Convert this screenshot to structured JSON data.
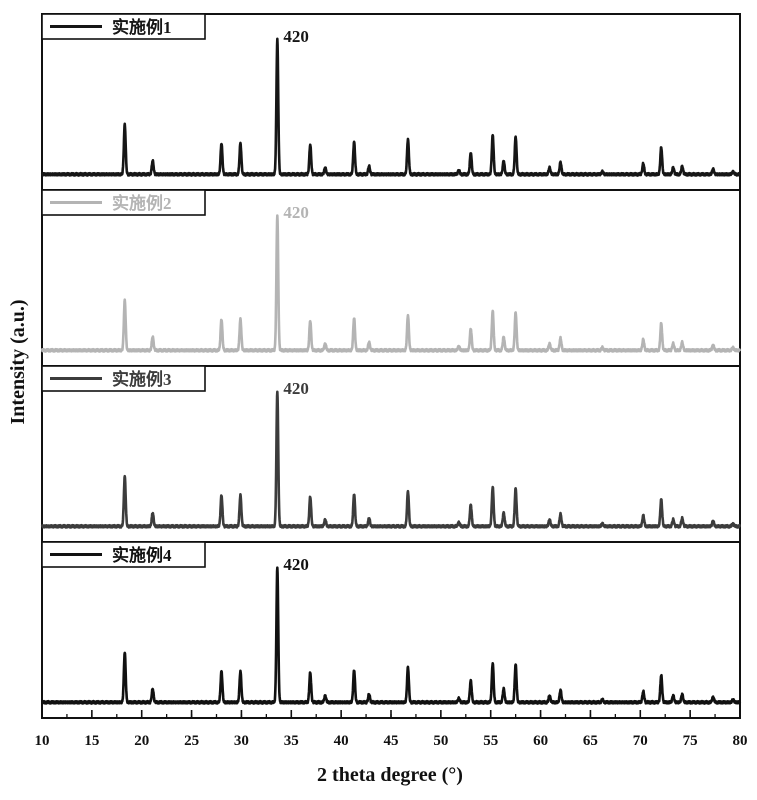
{
  "chart_data": {
    "type": "line",
    "xlabel": "2 theta degree (°)",
    "ylabel": "Intensity (a.u.)",
    "xlim": [
      10,
      80
    ],
    "x_major_ticks": [
      10,
      15,
      20,
      25,
      30,
      35,
      40,
      45,
      50,
      55,
      60,
      65,
      70,
      75,
      80
    ],
    "x_minor_step": 2.5,
    "grid": false,
    "legend_placement": "top-left of each panel",
    "panels": [
      {
        "legend": "实施例1",
        "color": "#161616",
        "peak_annotation": "420"
      },
      {
        "legend": "实施例2",
        "color": "#b4b4b4",
        "peak_annotation": "420"
      },
      {
        "legend": "实施例3",
        "color": "#3c3c3c",
        "peak_annotation": "420"
      },
      {
        "legend": "实施例4",
        "color": "#111111",
        "peak_annotation": "420"
      }
    ],
    "peaks": [
      {
        "two_theta": 18.3,
        "rel_intensity": 0.37
      },
      {
        "two_theta": 21.1,
        "rel_intensity": 0.1
      },
      {
        "two_theta": 28.0,
        "rel_intensity": 0.23
      },
      {
        "two_theta": 29.9,
        "rel_intensity": 0.23
      },
      {
        "two_theta": 33.6,
        "rel_intensity": 1.0
      },
      {
        "two_theta": 36.9,
        "rel_intensity": 0.22
      },
      {
        "two_theta": 38.4,
        "rel_intensity": 0.05
      },
      {
        "two_theta": 41.3,
        "rel_intensity": 0.24
      },
      {
        "two_theta": 42.8,
        "rel_intensity": 0.06
      },
      {
        "two_theta": 46.7,
        "rel_intensity": 0.26
      },
      {
        "two_theta": 51.8,
        "rel_intensity": 0.03
      },
      {
        "two_theta": 53.0,
        "rel_intensity": 0.16
      },
      {
        "two_theta": 55.2,
        "rel_intensity": 0.29
      },
      {
        "two_theta": 56.3,
        "rel_intensity": 0.1
      },
      {
        "two_theta": 57.5,
        "rel_intensity": 0.28
      },
      {
        "two_theta": 60.9,
        "rel_intensity": 0.05
      },
      {
        "two_theta": 62.0,
        "rel_intensity": 0.09
      },
      {
        "two_theta": 66.2,
        "rel_intensity": 0.02
      },
      {
        "two_theta": 70.3,
        "rel_intensity": 0.08
      },
      {
        "two_theta": 72.1,
        "rel_intensity": 0.2
      },
      {
        "two_theta": 73.3,
        "rel_intensity": 0.05
      },
      {
        "two_theta": 74.2,
        "rel_intensity": 0.06
      },
      {
        "two_theta": 77.3,
        "rel_intensity": 0.04
      },
      {
        "two_theta": 79.3,
        "rel_intensity": 0.02
      }
    ]
  }
}
